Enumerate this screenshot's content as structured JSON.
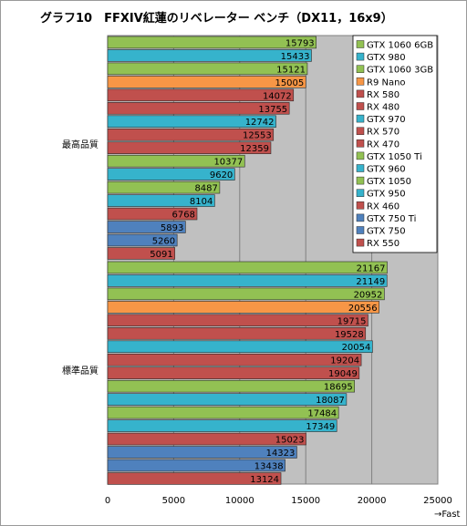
{
  "chart_data": {
    "type": "bar",
    "orientation": "horizontal",
    "title": "グラフ10　FFXIV紅蓮のリベレーター ベンチ（DX11，16x9）",
    "xlabel": "→Fast",
    "xlim": [
      0,
      25000
    ],
    "xticks": [
      "0",
      "5000",
      "10000",
      "15000",
      "20000",
      "25000"
    ],
    "xtick_values": [
      0,
      5000,
      10000,
      15000,
      20000,
      25000
    ],
    "grid": true,
    "legend_position": "top-right",
    "colors": {
      "GTX 1060 6GB": "#92c153",
      "GTX 980": "#36b3cc",
      "GTX 1060 3GB": "#92c153",
      "R9 Nano": "#f79646",
      "RX 580": "#c0504d",
      "RX 480": "#c0504d",
      "GTX 970": "#36b3cc",
      "RX 570": "#c0504d",
      "RX 470": "#c0504d",
      "GTX 1050 Ti": "#92c153",
      "GTX 960": "#36b3cc",
      "GTX 1050": "#92c153",
      "GTX 950": "#36b3cc",
      "RX 460": "#c0504d",
      "GTX 750 Ti": "#4f81bd",
      "GTX 750": "#4f81bd",
      "RX 550": "#c0504d"
    },
    "series": [
      {
        "name": "GTX 1060 6GB",
        "values": [
          15793,
          21167
        ]
      },
      {
        "name": "GTX 980",
        "values": [
          15433,
          21149
        ]
      },
      {
        "name": "GTX 1060 3GB",
        "values": [
          15121,
          20952
        ]
      },
      {
        "name": "R9 Nano",
        "values": [
          15005,
          20556
        ]
      },
      {
        "name": "RX 580",
        "values": [
          14072,
          19715
        ]
      },
      {
        "name": "RX 480",
        "values": [
          13755,
          19528
        ]
      },
      {
        "name": "GTX 970",
        "values": [
          12742,
          20054
        ]
      },
      {
        "name": "RX 570",
        "values": [
          12553,
          19204
        ]
      },
      {
        "name": "RX 470",
        "values": [
          12359,
          19049
        ]
      },
      {
        "name": "GTX 1050 Ti",
        "values": [
          10377,
          18695
        ]
      },
      {
        "name": "GTX 960",
        "values": [
          9620,
          18087
        ]
      },
      {
        "name": "GTX 1050",
        "values": [
          8487,
          17484
        ]
      },
      {
        "name": "GTX 950",
        "values": [
          8104,
          17349
        ]
      },
      {
        "name": "RX 460",
        "values": [
          6768,
          15023
        ]
      },
      {
        "name": "GTX 750 Ti",
        "values": [
          5893,
          14323
        ]
      },
      {
        "name": "GTX 750",
        "values": [
          5260,
          13438
        ]
      },
      {
        "name": "RX 550",
        "values": [
          5091,
          13124
        ]
      }
    ],
    "categories": [
      "最高品質",
      "標準品質"
    ]
  }
}
